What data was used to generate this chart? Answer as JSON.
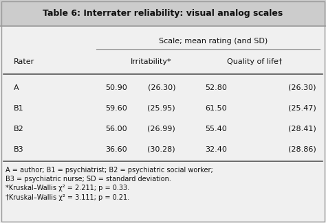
{
  "title": "Table 6: Interrater reliability: visual analog scales",
  "col_header_top": "Scale; mean rating (and SD)",
  "col_header_left": "Rater",
  "col_header_irr": "Irritability*",
  "col_header_qol": "Quality of life†",
  "raters": [
    "A",
    "B1",
    "B2",
    "B3"
  ],
  "irr_mean": [
    "50.90",
    "59.60",
    "56.00",
    "36.60"
  ],
  "irr_sd": [
    "(26.30)",
    "(25.95)",
    "(26.99)",
    "(30.28)"
  ],
  "qol_mean": [
    "52.80",
    "61.50",
    "55.40",
    "32.40"
  ],
  "qol_sd": [
    "(26.30)",
    "(25.47)",
    "(28.41)",
    "(28.86)"
  ],
  "footnote1": "A = author; B1 = psychiatrist; B2 = psychiatric social worker;",
  "footnote2": "B3 = psychiatric nurse; SD = standard deviation.",
  "footnote3": "*Kruskal–Wallis χ² = 2.211; p = 0.33.",
  "footnote4": "†Kruskal–Wallis χ² = 3.111; p = 0.21.",
  "title_bg": "#cccccc",
  "bg_color": "#f0f0f0",
  "text_color": "#111111"
}
